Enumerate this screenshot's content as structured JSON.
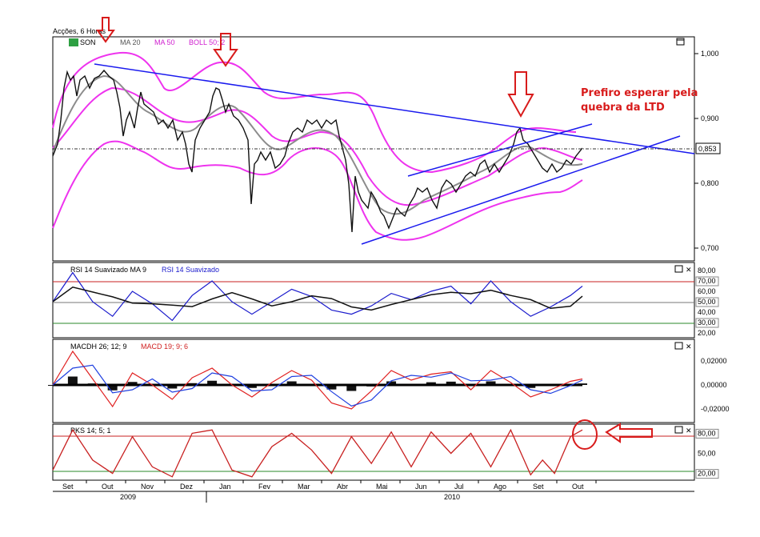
{
  "header": {
    "title": "Acções, 6 Horas"
  },
  "colors": {
    "price": "#111111",
    "ma20": "#8c8c8c",
    "ma50": "#ee33ee",
    "boll": "#ee33ee",
    "trend": "#1a1aee",
    "annotation": "#d81b1b",
    "rsi": "#1a1acc",
    "rsi_ma": "#111111",
    "macd": "#e02020",
    "signal": "#2040e0",
    "pks": "#c82020",
    "line_upper": "#c82020",
    "line_lower": "#2a8a2a"
  },
  "annotation": {
    "line1": "Prefiro esperar pela",
    "line2": "quebra da LTD"
  },
  "chart_data": [
    {
      "type": "line",
      "panel": "price",
      "legend": [
        "SON",
        "MA 20",
        "MA 50",
        "BOLL 50; 2"
      ],
      "ylim": [
        0.68,
        1.04
      ],
      "y_ticks": [
        "1,000",
        "0,900",
        "0,800",
        "0,700"
      ],
      "last_value": "0,853",
      "x_months": [
        "Set",
        "Out",
        "Nov",
        "Dez",
        "Jan",
        "Fev",
        "Mar",
        "Abr",
        "Mai",
        "Jun",
        "Jul",
        "Ago",
        "Set",
        "Out"
      ],
      "years": [
        "2009",
        "2010"
      ],
      "series": [
        {
          "name": "SON",
          "x": [
            0,
            0.5,
            1,
            1.3,
            1.6,
            2,
            2.5,
            3,
            3.3,
            3.7,
            4,
            4.3,
            4.6,
            5,
            5.3,
            5.7,
            6,
            6.5,
            7,
            7.2,
            7.5,
            7.8,
            8,
            8.3,
            8.6,
            9,
            9.5,
            10,
            10.5,
            11,
            11.3,
            11.6,
            12,
            12.3,
            12.6,
            13,
            13.3
          ],
          "values": [
            0.85,
            0.97,
            0.97,
            0.88,
            0.94,
            0.92,
            0.89,
            0.84,
            0.93,
            0.95,
            0.9,
            0.86,
            0.83,
            0.86,
            0.88,
            0.9,
            0.89,
            0.85,
            0.8,
            0.75,
            0.79,
            0.75,
            0.77,
            0.79,
            0.82,
            0.81,
            0.83,
            0.84,
            0.83,
            0.86,
            0.89,
            0.85,
            0.83,
            0.82,
            0.83,
            0.84,
            0.85
          ]
        }
      ]
    },
    {
      "type": "line",
      "panel": "rsi",
      "legend": [
        "RSI 14 Suavizado MA 9",
        "RSI 14 Suavizado"
      ],
      "ylim": [
        20,
        80
      ],
      "y_ticks": [
        "80,00",
        "70,00",
        "60,00",
        "50,00",
        "40,00",
        "30,00",
        "20,00"
      ],
      "levels": [
        70,
        50,
        30
      ],
      "x": [
        0,
        0.5,
        1,
        1.5,
        2,
        2.5,
        3,
        3.5,
        4,
        4.5,
        5,
        5.5,
        6,
        6.5,
        7,
        7.5,
        8,
        8.5,
        9,
        9.5,
        10,
        10.5,
        11,
        11.5,
        12,
        12.5,
        13,
        13.3
      ],
      "values": [
        50,
        78,
        50,
        36,
        60,
        48,
        32,
        56,
        70,
        50,
        38,
        50,
        62,
        55,
        42,
        38,
        46,
        58,
        52,
        60,
        65,
        48,
        70,
        50,
        36,
        45,
        56,
        65
      ]
    },
    {
      "type": "bar",
      "panel": "macd",
      "legend": [
        "MACDH 26; 12; 9",
        "MACD 19; 9; 6"
      ],
      "ylim": [
        -0.03,
        0.03
      ],
      "y_ticks": [
        "0,02000",
        "0,00000",
        "-0,02000"
      ],
      "x": [
        0,
        0.5,
        1,
        1.5,
        2,
        2.5,
        3,
        3.5,
        4,
        4.5,
        5,
        5.5,
        6,
        6.5,
        7,
        7.5,
        8,
        8.5,
        9,
        9.5,
        10,
        10.5,
        11,
        11.5,
        12,
        12.5,
        13,
        13.3
      ],
      "values": [
        0.0,
        0.028,
        0.005,
        -0.018,
        0.01,
        0.0,
        -0.012,
        0.006,
        0.014,
        0.0,
        -0.01,
        0.002,
        0.012,
        0.004,
        -0.015,
        -0.02,
        -0.005,
        0.012,
        0.004,
        0.009,
        0.011,
        -0.004,
        0.012,
        0.002,
        -0.01,
        -0.004,
        0.003,
        0.005
      ]
    },
    {
      "type": "line",
      "panel": "pks",
      "legend": [
        "PKS 14; 5; 1"
      ],
      "ylim": [
        10,
        90
      ],
      "y_ticks": [
        "80,00",
        "50,00",
        "20,00"
      ],
      "levels": [
        80,
        20
      ],
      "x": [
        0,
        0.5,
        1,
        1.5,
        2,
        2.5,
        3,
        3.5,
        4,
        4.5,
        5,
        5.5,
        6,
        6.5,
        7,
        7.5,
        8,
        8.5,
        9,
        9.5,
        10,
        10.5,
        11,
        11.5,
        12,
        12.3,
        12.6,
        13,
        13.3
      ],
      "values": [
        25,
        85,
        40,
        20,
        75,
        30,
        15,
        80,
        85,
        25,
        15,
        60,
        80,
        55,
        20,
        75,
        35,
        82,
        30,
        82,
        50,
        80,
        30,
        85,
        18,
        40,
        20,
        75,
        85
      ]
    }
  ]
}
